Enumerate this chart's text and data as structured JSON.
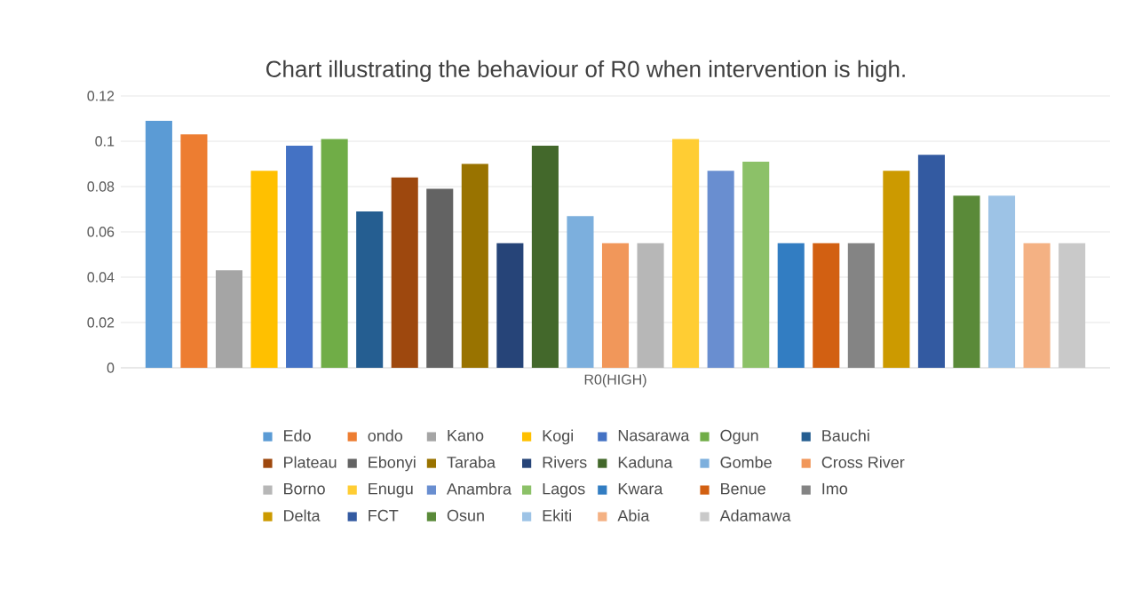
{
  "chart_data": {
    "type": "bar",
    "title": "Chart illustrating the behaviour of R0 when intervention is high.",
    "categories": [
      "R0(HIGH)"
    ],
    "ylim": [
      0,
      0.12
    ],
    "yticks": [
      0,
      0.02,
      0.04,
      0.06,
      0.08,
      0.1,
      0.12
    ],
    "grid": "y",
    "legend": "bottom",
    "series": [
      {
        "name": "Edo",
        "color": "#5b9bd5",
        "values": [
          0.109
        ]
      },
      {
        "name": "ondo",
        "color": "#ed7d31",
        "values": [
          0.103
        ]
      },
      {
        "name": "Kano",
        "color": "#a5a5a5",
        "values": [
          0.043
        ]
      },
      {
        "name": "Kogi",
        "color": "#ffc000",
        "values": [
          0.087
        ]
      },
      {
        "name": "Nasarawa",
        "color": "#4472c4",
        "values": [
          0.098
        ]
      },
      {
        "name": "Ogun",
        "color": "#70ad47",
        "values": [
          0.101
        ]
      },
      {
        "name": "Bauchi",
        "color": "#255e91",
        "values": [
          0.069
        ]
      },
      {
        "name": "Plateau",
        "color": "#9e480e",
        "values": [
          0.084
        ]
      },
      {
        "name": "Ebonyi",
        "color": "#636363",
        "values": [
          0.079
        ]
      },
      {
        "name": "Taraba",
        "color": "#997300",
        "values": [
          0.09
        ]
      },
      {
        "name": "Rivers",
        "color": "#264478",
        "values": [
          0.055
        ]
      },
      {
        "name": "Kaduna",
        "color": "#43682b",
        "values": [
          0.098
        ]
      },
      {
        "name": "Gombe",
        "color": "#7cafdd",
        "values": [
          0.067
        ]
      },
      {
        "name": "Cross River",
        "color": "#f1975a",
        "values": [
          0.055
        ]
      },
      {
        "name": "Borno",
        "color": "#b7b7b7",
        "values": [
          0.055
        ]
      },
      {
        "name": "Enugu",
        "color": "#ffcd33",
        "values": [
          0.101
        ]
      },
      {
        "name": "Anambra",
        "color": "#698ed0",
        "values": [
          0.087
        ]
      },
      {
        "name": "Lagos",
        "color": "#8cc168",
        "values": [
          0.091
        ]
      },
      {
        "name": "Kwara",
        "color": "#327dc2",
        "values": [
          0.055
        ]
      },
      {
        "name": "Benue",
        "color": "#d26012",
        "values": [
          0.055
        ]
      },
      {
        "name": "Imo",
        "color": "#848484",
        "values": [
          0.055
        ]
      },
      {
        "name": "Delta",
        "color": "#cc9a00",
        "values": [
          0.087
        ]
      },
      {
        "name": "FCT",
        "color": "#335aa1",
        "values": [
          0.094
        ]
      },
      {
        "name": "Osun",
        "color": "#5a8a39",
        "values": [
          0.076
        ]
      },
      {
        "name": "Ekiti",
        "color": "#9dc3e6",
        "values": [
          0.076
        ]
      },
      {
        "name": "Abia",
        "color": "#f4b183",
        "values": [
          0.055
        ]
      },
      {
        "name": "Adamawa",
        "color": "#c9c9c9",
        "values": [
          0.055
        ]
      }
    ]
  }
}
